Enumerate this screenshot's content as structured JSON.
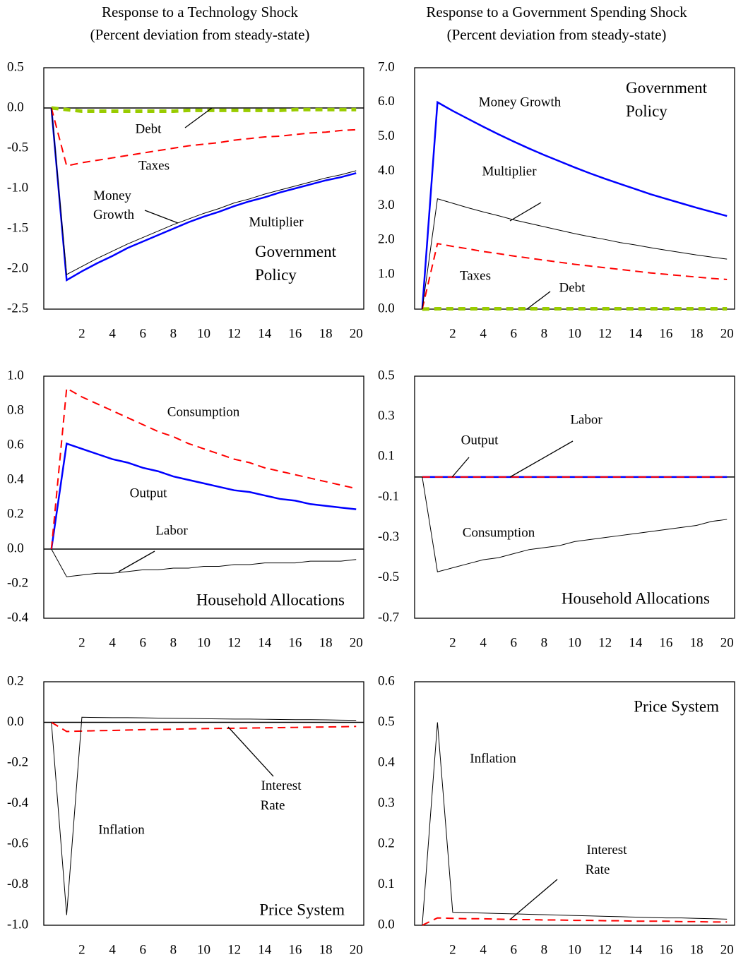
{
  "columns": [
    {
      "title": "Response to a Technology Shock",
      "subtitle": "(Percent deviation from steady-state)"
    },
    {
      "title": "Response to a Government Spending Shock",
      "subtitle": "(Percent deviation from steady-state)"
    }
  ],
  "chart_data": [
    {
      "type": "line",
      "annotation": "Government Policy",
      "x": [
        0,
        1,
        2,
        3,
        4,
        5,
        6,
        7,
        8,
        9,
        10,
        11,
        12,
        13,
        14,
        15,
        16,
        17,
        18,
        19,
        20
      ],
      "xlim": [
        -0.5,
        20.5
      ],
      "xticks": [
        2,
        4,
        6,
        8,
        10,
        12,
        14,
        16,
        18,
        20
      ],
      "ylim": [
        -2.5,
        0.5
      ],
      "yticks": [
        {
          "value": -2.5,
          "label": "-2.5"
        },
        {
          "value": -2.0,
          "label": "-2.0"
        },
        {
          "value": -1.5,
          "label": "-1.5"
        },
        {
          "value": -1.0,
          "label": "-1.0"
        },
        {
          "value": -0.5,
          "label": "-0.5"
        },
        {
          "value": 0,
          "label": "0.0"
        },
        {
          "value": 0.5,
          "label": "0.5"
        }
      ],
      "series": [
        {
          "name": "Debt",
          "color": "#99cc00",
          "style": "dashed",
          "linewidth": 5,
          "values": [
            0,
            -0.02,
            -0.04,
            -0.04,
            -0.04,
            -0.04,
            -0.04,
            -0.04,
            -0.04,
            -0.03,
            -0.03,
            -0.03,
            -0.03,
            -0.03,
            -0.03,
            -0.03,
            -0.02,
            -0.02,
            -0.02,
            -0.02,
            -0.02
          ]
        },
        {
          "name": "Taxes",
          "color": "#ff0000",
          "style": "dashed",
          "linewidth": 2,
          "values": [
            0,
            -0.72,
            -0.68,
            -0.65,
            -0.62,
            -0.59,
            -0.56,
            -0.53,
            -0.5,
            -0.47,
            -0.45,
            -0.43,
            -0.4,
            -0.38,
            -0.36,
            -0.35,
            -0.33,
            -0.31,
            -0.3,
            -0.28,
            -0.27
          ]
        },
        {
          "name": "Money Growth",
          "color": "#0000ff",
          "style": "solid",
          "linewidth": 2.5,
          "values": [
            0,
            -2.14,
            -2.03,
            -1.93,
            -1.84,
            -1.74,
            -1.66,
            -1.58,
            -1.5,
            -1.42,
            -1.35,
            -1.29,
            -1.22,
            -1.16,
            -1.11,
            -1.05,
            -1.0,
            -0.95,
            -0.9,
            -0.86,
            -0.81
          ]
        },
        {
          "name": "Multiplier",
          "color": "#000000",
          "style": "solid",
          "linewidth": 1,
          "values": [
            0,
            -2.07,
            -1.97,
            -1.87,
            -1.78,
            -1.69,
            -1.61,
            -1.53,
            -1.45,
            -1.38,
            -1.31,
            -1.25,
            -1.18,
            -1.13,
            -1.07,
            -1.02,
            -0.97,
            -0.92,
            -0.87,
            -0.83,
            -0.78
          ]
        }
      ]
    },
    {
      "type": "line",
      "annotation": "Government Policy",
      "x": [
        0,
        1,
        2,
        3,
        4,
        5,
        6,
        7,
        8,
        9,
        10,
        11,
        12,
        13,
        14,
        15,
        16,
        17,
        18,
        19,
        20
      ],
      "xlim": [
        -0.5,
        20.5
      ],
      "xticks": [
        2,
        4,
        6,
        8,
        10,
        12,
        14,
        16,
        18,
        20
      ],
      "ylim": [
        0,
        7
      ],
      "yticks": [
        {
          "value": 0,
          "label": "0.0"
        },
        {
          "value": 1,
          "label": "1.0"
        },
        {
          "value": 2,
          "label": "2.0"
        },
        {
          "value": 3,
          "label": "3.0"
        },
        {
          "value": 4,
          "label": "4.0"
        },
        {
          "value": 5,
          "label": "5.0"
        },
        {
          "value": 6,
          "label": "6.0"
        },
        {
          "value": 7,
          "label": "7.0"
        }
      ],
      "series": [
        {
          "name": "Money Growth",
          "color": "#0000ff",
          "style": "solid",
          "linewidth": 2.5,
          "values": [
            0,
            6.0,
            5.75,
            5.52,
            5.29,
            5.07,
            4.86,
            4.66,
            4.47,
            4.29,
            4.11,
            3.94,
            3.78,
            3.63,
            3.48,
            3.33,
            3.2,
            3.07,
            2.94,
            2.82,
            2.7
          ]
        },
        {
          "name": "Multiplier",
          "color": "#000000",
          "style": "solid",
          "linewidth": 1,
          "values": [
            0,
            3.2,
            3.07,
            2.94,
            2.82,
            2.71,
            2.59,
            2.49,
            2.39,
            2.29,
            2.19,
            2.1,
            2.02,
            1.93,
            1.86,
            1.78,
            1.71,
            1.64,
            1.57,
            1.51,
            1.45
          ]
        },
        {
          "name": "Taxes",
          "color": "#ff0000",
          "style": "dashed",
          "linewidth": 2,
          "values": [
            0,
            1.9,
            1.82,
            1.75,
            1.67,
            1.61,
            1.54,
            1.48,
            1.42,
            1.36,
            1.3,
            1.25,
            1.2,
            1.15,
            1.1,
            1.05,
            1.01,
            0.97,
            0.93,
            0.89,
            0.86
          ]
        },
        {
          "name": "Debt",
          "color": "#99cc00",
          "style": "dashed",
          "linewidth": 5,
          "values": [
            0,
            0.01,
            0.01,
            0.01,
            0.01,
            0.01,
            0.01,
            0.01,
            0.01,
            0.01,
            0.01,
            0.01,
            0.01,
            0.01,
            0.01,
            0.01,
            0.01,
            0.01,
            0.01,
            0.01,
            0.01
          ]
        }
      ]
    },
    {
      "type": "line",
      "annotation": "Household Allocations",
      "x": [
        0,
        1,
        2,
        3,
        4,
        5,
        6,
        7,
        8,
        9,
        10,
        11,
        12,
        13,
        14,
        15,
        16,
        17,
        18,
        19,
        20
      ],
      "xlim": [
        -0.5,
        20.5
      ],
      "xticks": [
        2,
        4,
        6,
        8,
        10,
        12,
        14,
        16,
        18,
        20
      ],
      "ylim": [
        -0.4,
        1.0
      ],
      "yticks": [
        -0.4,
        -0.2,
        {
          "value": 0,
          "label": "0.0"
        },
        0.2,
        0.4,
        0.6,
        0.8,
        {
          "value": 1,
          "label": "1.0"
        }
      ],
      "series": [
        {
          "name": "Consumption",
          "color": "#ff0000",
          "style": "dashed",
          "linewidth": 2,
          "values": [
            0,
            0.93,
            0.88,
            0.84,
            0.8,
            0.76,
            0.72,
            0.68,
            0.65,
            0.61,
            0.58,
            0.55,
            0.52,
            0.5,
            0.47,
            0.45,
            0.43,
            0.41,
            0.39,
            0.37,
            0.35
          ]
        },
        {
          "name": "Output",
          "color": "#0000ff",
          "style": "solid",
          "linewidth": 2.5,
          "values": [
            0,
            0.61,
            0.58,
            0.55,
            0.52,
            0.5,
            0.47,
            0.45,
            0.42,
            0.4,
            0.38,
            0.36,
            0.34,
            0.33,
            0.31,
            0.29,
            0.28,
            0.26,
            0.25,
            0.24,
            0.23
          ]
        },
        {
          "name": "Labor",
          "color": "#000000",
          "style": "solid",
          "linewidth": 1,
          "values": [
            0,
            -0.16,
            -0.15,
            -0.14,
            -0.14,
            -0.13,
            -0.12,
            -0.12,
            -0.11,
            -0.11,
            -0.1,
            -0.1,
            -0.09,
            -0.09,
            -0.08,
            -0.08,
            -0.08,
            -0.07,
            -0.07,
            -0.07,
            -0.06
          ]
        }
      ]
    },
    {
      "type": "line",
      "annotation": "Household Allocations",
      "x": [
        0,
        1,
        2,
        3,
        4,
        5,
        6,
        7,
        8,
        9,
        10,
        11,
        12,
        13,
        14,
        15,
        16,
        17,
        18,
        19,
        20
      ],
      "xlim": [
        -0.5,
        20.5
      ],
      "xticks": [
        2,
        4,
        6,
        8,
        10,
        12,
        14,
        16,
        18,
        20
      ],
      "ylim": [
        -0.7,
        0.5
      ],
      "yticks": [
        -0.7,
        -0.5,
        -0.3,
        -0.1,
        0.1,
        0.3,
        0.5
      ],
      "series": [
        {
          "name": "Output",
          "color": "#0000ff",
          "style": "solid",
          "linewidth": 2.5,
          "values": [
            0,
            0,
            0,
            0,
            0,
            0,
            0,
            0,
            0,
            0,
            0,
            0,
            0,
            0,
            0,
            0,
            0,
            0,
            0,
            0,
            0
          ]
        },
        {
          "name": "Labor",
          "color": "#ff0000",
          "style": "dashed",
          "linewidth": 2,
          "values": [
            0,
            0,
            0,
            0,
            0,
            0,
            0,
            0,
            0,
            0,
            0,
            0,
            0,
            0,
            0,
            0,
            0,
            0,
            0,
            0,
            0
          ]
        },
        {
          "name": "Consumption",
          "color": "#000000",
          "style": "solid",
          "linewidth": 1,
          "values": [
            0,
            -0.47,
            -0.45,
            -0.43,
            -0.41,
            -0.4,
            -0.38,
            -0.36,
            -0.35,
            -0.34,
            -0.32,
            -0.31,
            -0.3,
            -0.29,
            -0.28,
            -0.27,
            -0.26,
            -0.25,
            -0.24,
            -0.22,
            -0.21
          ]
        }
      ]
    },
    {
      "type": "line",
      "annotation": "Price System",
      "x": [
        0,
        1,
        2,
        3,
        4,
        5,
        6,
        7,
        8,
        9,
        10,
        11,
        12,
        13,
        14,
        15,
        16,
        17,
        18,
        19,
        20
      ],
      "xlim": [
        -0.5,
        20.5
      ],
      "xticks": [
        2,
        4,
        6,
        8,
        10,
        12,
        14,
        16,
        18,
        20
      ],
      "ylim": [
        -1.0,
        0.2
      ],
      "yticks": [
        {
          "value": -1,
          "label": "-1.0"
        },
        -0.8,
        -0.6,
        -0.4,
        -0.2,
        {
          "value": 0,
          "label": "0.0"
        },
        0.2
      ],
      "series": [
        {
          "name": "Inflation",
          "color": "#000000",
          "style": "solid",
          "linewidth": 1,
          "values": [
            0,
            -0.95,
            0.025,
            0.024,
            0.023,
            0.023,
            0.022,
            0.021,
            0.02,
            0.019,
            0.018,
            0.017,
            0.016,
            0.016,
            0.015,
            0.014,
            0.013,
            0.013,
            0.012,
            0.011,
            0.01
          ]
        },
        {
          "name": "Interest Rate",
          "color": "#ff0000",
          "style": "dashed",
          "linewidth": 2,
          "values": [
            0,
            -0.045,
            -0.043,
            -0.041,
            -0.04,
            -0.038,
            -0.036,
            -0.035,
            -0.034,
            -0.032,
            -0.031,
            -0.03,
            -0.029,
            -0.028,
            -0.027,
            -0.026,
            -0.025,
            -0.024,
            -0.023,
            -0.022,
            -0.02
          ]
        }
      ]
    },
    {
      "type": "line",
      "annotation": "Price System",
      "x": [
        0,
        1,
        2,
        3,
        4,
        5,
        6,
        7,
        8,
        9,
        10,
        11,
        12,
        13,
        14,
        15,
        16,
        17,
        18,
        19,
        20
      ],
      "xlim": [
        -0.5,
        20.5
      ],
      "xticks": [
        2,
        4,
        6,
        8,
        10,
        12,
        14,
        16,
        18,
        20
      ],
      "ylim": [
        0,
        0.6
      ],
      "yticks": [
        {
          "value": 0,
          "label": "0.0"
        },
        0.1,
        0.2,
        0.3,
        0.4,
        0.5,
        0.6
      ],
      "series": [
        {
          "name": "Inflation",
          "color": "#000000",
          "style": "solid",
          "linewidth": 1,
          "values": [
            0,
            0.5,
            0.032,
            0.031,
            0.03,
            0.029,
            0.028,
            0.027,
            0.026,
            0.025,
            0.024,
            0.023,
            0.022,
            0.021,
            0.02,
            0.019,
            0.018,
            0.018,
            0.017,
            0.016,
            0.015
          ]
        },
        {
          "name": "Interest Rate",
          "color": "#ff0000",
          "style": "dashed",
          "linewidth": 2,
          "values": [
            0,
            0.018,
            0.017,
            0.016,
            0.016,
            0.015,
            0.014,
            0.014,
            0.013,
            0.013,
            0.012,
            0.012,
            0.011,
            0.011,
            0.01,
            0.01,
            0.01,
            0.009,
            0.009,
            0.008,
            0.008
          ]
        }
      ]
    }
  ]
}
